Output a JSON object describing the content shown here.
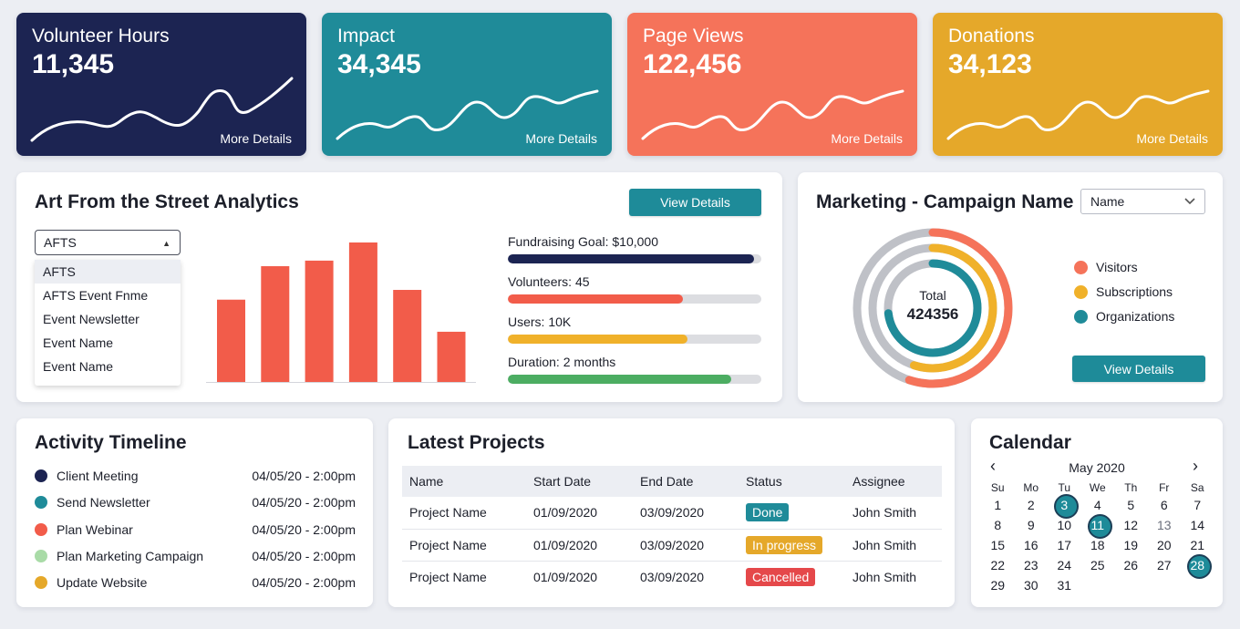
{
  "stats": [
    {
      "title": "Volunteer Hours",
      "value": "11,345",
      "more": "More Details",
      "color": "#1c2452"
    },
    {
      "title": "Impact",
      "value": "34,345",
      "more": "More Details",
      "color": "#1f8b99"
    },
    {
      "title": "Page Views",
      "value": "122,456",
      "more": "More Details",
      "color": "#f5735a"
    },
    {
      "title": "Donations",
      "value": "34,123",
      "more": "More Details",
      "color": "#e5a82a"
    }
  ],
  "analytics": {
    "title": "Art From the Street Analytics",
    "view_details": "View Details",
    "select_value": "AFTS",
    "options": [
      "AFTS",
      "AFTS Event Fnme",
      "Event Newsletter",
      "Event Name",
      "Event Name"
    ],
    "chart_data": {
      "type": "bar",
      "values": [
        59,
        83,
        87,
        100,
        66,
        36
      ],
      "color": "#f25c4a"
    },
    "metrics": [
      {
        "label": "Fundraising Goal: $10,000",
        "progress": 0.97,
        "color": "#1c2452"
      },
      {
        "label": "Volunteers: 45",
        "progress": 0.69,
        "color": "#f25c4a"
      },
      {
        "label": "Users: 10K",
        "progress": 0.71,
        "color": "#f0b12a"
      },
      {
        "label": "Duration: 2 months",
        "progress": 0.88,
        "color": "#4cad62"
      }
    ]
  },
  "marketing": {
    "title": "Marketing - Campaign Name",
    "select_value": "Name",
    "total_label": "Total",
    "total_value": "424356",
    "view_details": "View Details",
    "legend": [
      {
        "label": "Visitors",
        "color": "#f5735a"
      },
      {
        "label": "Subscriptions",
        "color": "#f0b12a"
      },
      {
        "label": "Organizations",
        "color": "#1f8b99"
      }
    ],
    "rings": [
      {
        "series": "Visitors",
        "fraction": 0.55,
        "color": "#f5735a"
      },
      {
        "series": "Subscriptions",
        "fraction": 0.55,
        "color": "#f0b12a"
      },
      {
        "series": "Organizations",
        "fraction": 0.73,
        "color": "#1f8b99"
      }
    ]
  },
  "timeline": {
    "title": "Activity Timeline",
    "items": [
      {
        "label": "Client Meeting",
        "time": "04/05/20 - 2:00pm",
        "color": "#1c2452"
      },
      {
        "label": "Send Newsletter",
        "time": "04/05/20 - 2:00pm",
        "color": "#1f8b99"
      },
      {
        "label": "Plan Webinar",
        "time": "04/05/20 - 2:00pm",
        "color": "#f25c4a"
      },
      {
        "label": "Plan Marketing Campaign",
        "time": "04/05/20 - 2:00pm",
        "color": "#a9dba7"
      },
      {
        "label": "Update Website",
        "time": "04/05/20 - 2:00pm",
        "color": "#e5a82a"
      }
    ]
  },
  "projects": {
    "title": "Latest Projects",
    "columns": [
      "Name",
      "Start Date",
      "End Date",
      "Status",
      "Assignee"
    ],
    "rows": [
      {
        "name": "Project Name",
        "start": "01/09/2020",
        "end": "03/09/2020",
        "status": "Done",
        "status_color": "#1f8b99",
        "assignee": "John Smith"
      },
      {
        "name": "Project Name",
        "start": "01/09/2020",
        "end": "03/09/2020",
        "status": "In progress",
        "status_color": "#e5a82a",
        "assignee": "John Smith"
      },
      {
        "name": "Project Name",
        "start": "01/09/2020",
        "end": "03/09/2020",
        "status": "Cancelled",
        "status_color": "#e5484a",
        "assignee": "John Smith"
      }
    ]
  },
  "calendar": {
    "title": "Calendar",
    "month": "May 2020",
    "prev": "‹",
    "next": "›",
    "weekdays": [
      "Su",
      "Mo",
      "Tu",
      "We",
      "Th",
      "Fr",
      "Sa"
    ],
    "weeks": [
      [
        "1",
        "2",
        "3",
        "4",
        "5",
        "6",
        "7"
      ],
      [
        "8",
        "9",
        "10",
        "11",
        "12",
        "13",
        "14"
      ],
      [
        "15",
        "16",
        "17",
        "18",
        "19",
        "20",
        "21"
      ],
      [
        "22",
        "23",
        "24",
        "25",
        "26",
        "27",
        "28"
      ],
      [
        "29",
        "30",
        "31",
        "",
        "",
        "",
        ""
      ]
    ],
    "highlighted": [
      "3",
      "11",
      "28"
    ],
    "muted": [
      "13"
    ]
  }
}
